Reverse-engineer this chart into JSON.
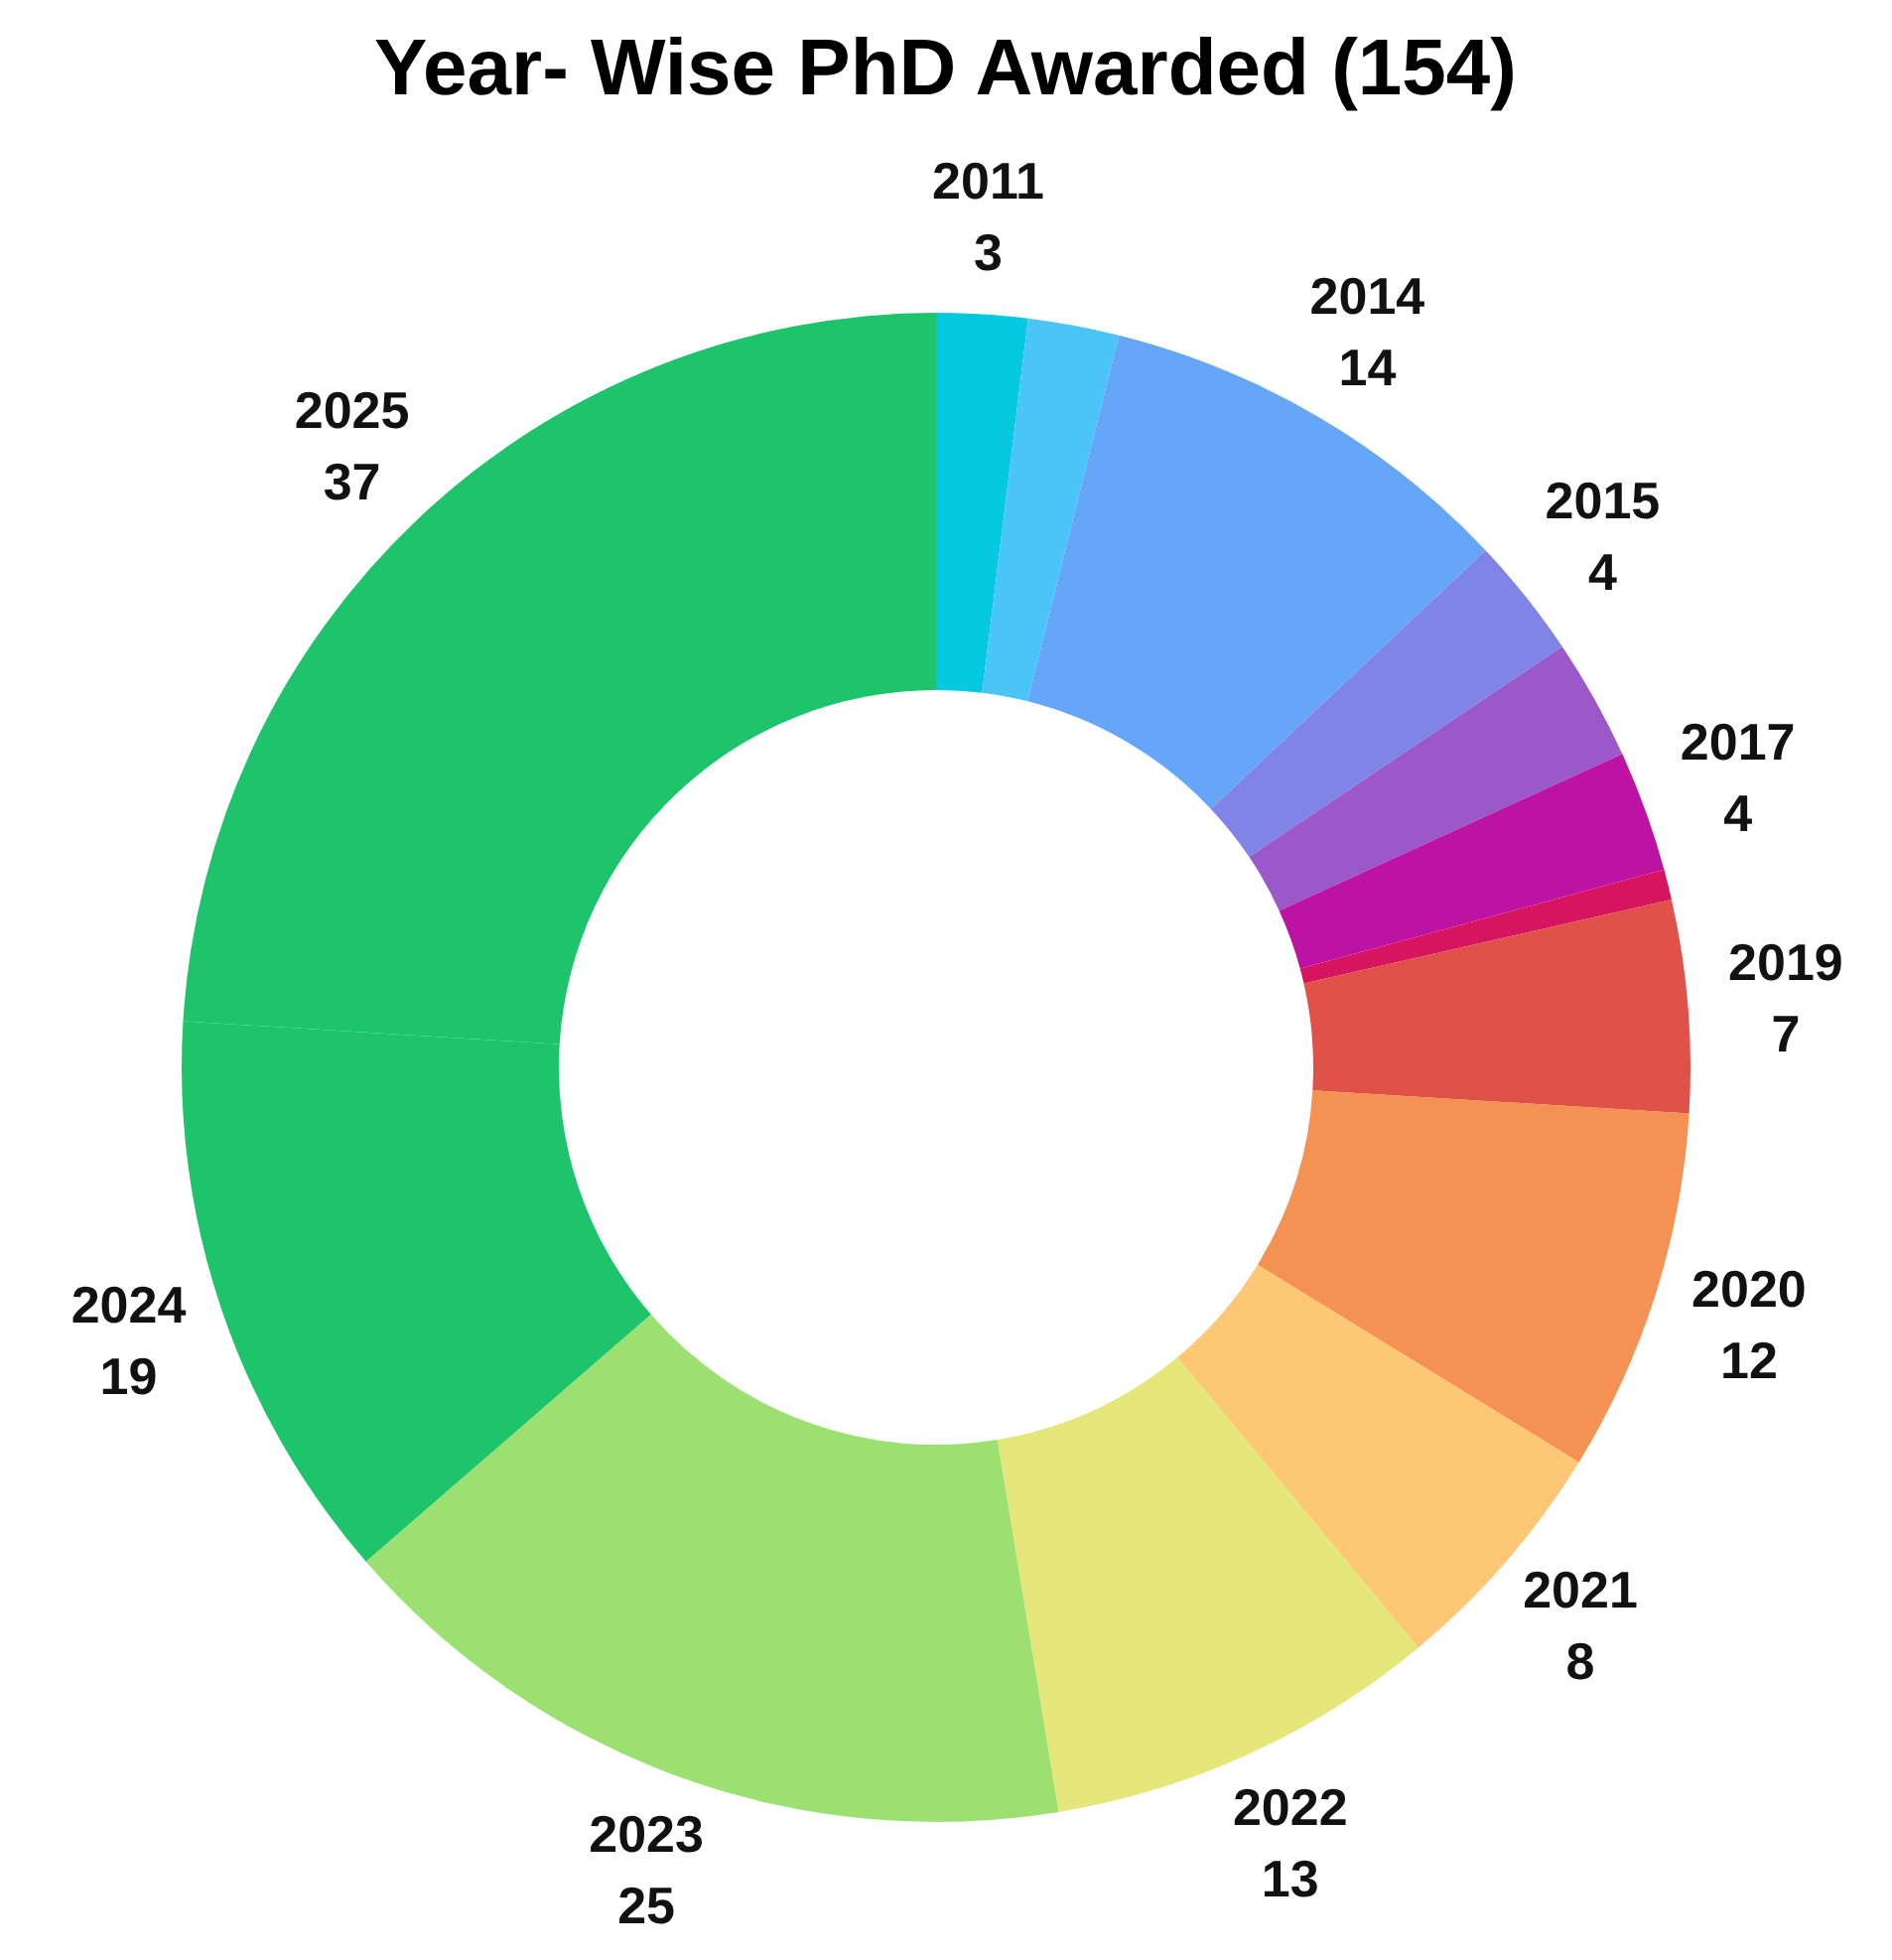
{
  "chart_data": {
    "type": "donut",
    "title": "Year- Wise PhD Awarded (154)",
    "categories": [
      "2011",
      null,
      "2014",
      "2015",
      null,
      "2017",
      null,
      "2019",
      "2020",
      "2021",
      "2022",
      "2023",
      "2024",
      "2025"
    ],
    "values": [
      3,
      3,
      14,
      4,
      4,
      4,
      1,
      7,
      12,
      8,
      13,
      25,
      19,
      37
    ],
    "colors": [
      "#06c9e0",
      "#4bc4f7",
      "#66a6f8",
      "#7f84e6",
      "#9a58c9",
      "#bc13a2",
      "#d6145f",
      "#df5149",
      "#f59152",
      "#fdc776",
      "#e5e77a",
      "#9be070",
      "#1dc46b",
      "#1dc46b"
    ],
    "value_labels": [
      "3",
      null,
      "14",
      "4",
      null,
      "4",
      null,
      "7",
      "12",
      "8",
      "13",
      "25",
      "19",
      "37"
    ]
  }
}
